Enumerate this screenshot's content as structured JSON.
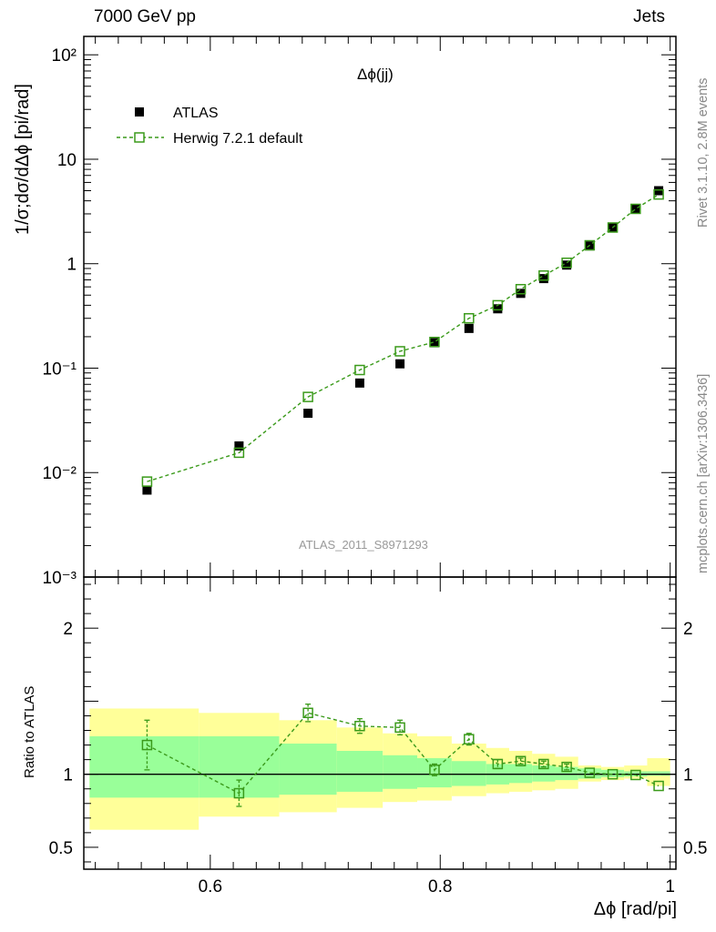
{
  "header": {
    "left": "7000 GeV pp",
    "right": "Jets"
  },
  "side_labels": {
    "rivet": "Rivet 3.1.10,  2.8M events",
    "mcplots": "mcplots.cern.ch [arXiv:1306.3436]"
  },
  "watermark": "ATLAS_2011_S8971293",
  "chart_data": [
    {
      "type": "scatter",
      "title": "Δϕ(jj)",
      "ylabel": "1/σ;dσ/dΔϕ [pi/rad]",
      "yscale": "log",
      "ylim": [
        0.001,
        150
      ],
      "xlim": [
        0.49,
        1.005
      ],
      "y_tick_labels": [
        "10⁻³",
        "10⁻²",
        "10⁻¹",
        "1",
        "10",
        "10²"
      ],
      "legend_position": "top-left",
      "series": [
        {
          "name": "ATLAS",
          "marker": "filled-square",
          "color": "#000000",
          "x": [
            0.545,
            0.625,
            0.685,
            0.73,
            0.765,
            0.795,
            0.825,
            0.85,
            0.87,
            0.89,
            0.91,
            0.93,
            0.95,
            0.97,
            0.99
          ],
          "y": [
            0.0068,
            0.018,
            0.037,
            0.072,
            0.11,
            0.175,
            0.24,
            0.37,
            0.52,
            0.72,
            0.97,
            1.48,
            2.2,
            3.35,
            5.0
          ]
        },
        {
          "name": "Herwig 7.2.1 default",
          "marker": "open-square",
          "color": "#3a9a1a",
          "line": "dashed",
          "x": [
            0.545,
            0.625,
            0.685,
            0.73,
            0.765,
            0.795,
            0.825,
            0.85,
            0.87,
            0.89,
            0.91,
            0.93,
            0.95,
            0.97,
            0.99
          ],
          "y": [
            0.0082,
            0.0155,
            0.053,
            0.096,
            0.145,
            0.178,
            0.3,
            0.4,
            0.57,
            0.77,
            1.02,
            1.5,
            2.22,
            3.35,
            4.6
          ]
        }
      ]
    },
    {
      "type": "scatter",
      "ylabel": "Ratio to ATLAS",
      "xlabel": "Δϕ [rad/pi]",
      "ylim": [
        0.35,
        2.35
      ],
      "xlim": [
        0.49,
        1.005
      ],
      "y_ticks": [
        0.5,
        1,
        2
      ],
      "y_tick_labels": [
        "0.5",
        "1",
        "2"
      ],
      "x_ticks": [
        0.6,
        0.8,
        1
      ],
      "x_tick_labels": [
        "0.6",
        "0.8",
        "1"
      ],
      "bin_edges": [
        0.495,
        0.59,
        0.66,
        0.71,
        0.75,
        0.78,
        0.81,
        0.84,
        0.86,
        0.88,
        0.9,
        0.92,
        0.94,
        0.96,
        0.98,
        1.0
      ],
      "uncertainty_bands": {
        "green_low": [
          0.84,
          0.84,
          0.86,
          0.88,
          0.9,
          0.91,
          0.92,
          0.93,
          0.94,
          0.95,
          0.96,
          0.97,
          0.98,
          0.985,
          0.99
        ],
        "green_high": [
          1.26,
          1.26,
          1.21,
          1.16,
          1.13,
          1.11,
          1.09,
          1.07,
          1.07,
          1.06,
          1.05,
          1.04,
          1.03,
          1.02,
          1.02
        ],
        "yellow_low": [
          0.62,
          0.71,
          0.74,
          0.77,
          0.81,
          0.82,
          0.85,
          0.87,
          0.88,
          0.89,
          0.9,
          0.95,
          0.96,
          0.97,
          0.92
        ],
        "yellow_high": [
          1.45,
          1.42,
          1.37,
          1.32,
          1.28,
          1.26,
          1.21,
          1.18,
          1.16,
          1.14,
          1.12,
          1.06,
          1.05,
          1.06,
          1.11
        ],
        "green_color": "#99ff99",
        "yellow_color": "#ffff99"
      },
      "series": [
        {
          "name": "Herwig 7.2.1 default",
          "color": "#3a9a1a",
          "x": [
            0.545,
            0.625,
            0.685,
            0.73,
            0.765,
            0.795,
            0.825,
            0.85,
            0.87,
            0.89,
            0.91,
            0.93,
            0.95,
            0.97,
            0.99
          ],
          "y": [
            1.2,
            0.87,
            1.42,
            1.33,
            1.32,
            1.03,
            1.24,
            1.07,
            1.09,
            1.07,
            1.05,
            1.01,
            1.0,
            0.995,
            0.92
          ],
          "err": [
            0.17,
            0.09,
            0.06,
            0.05,
            0.05,
            0.04,
            0.04,
            0.03,
            0.02,
            0.02,
            0.02,
            0.01,
            0.01,
            0.01,
            0.01
          ]
        }
      ]
    }
  ]
}
